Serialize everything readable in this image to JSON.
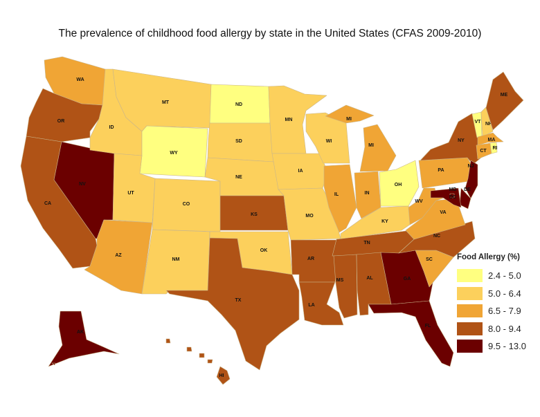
{
  "title": "The prevalence of childhood food allergy by state in the United States (CFAS 2009-2010)",
  "legend": {
    "title": "Food Allergy (%)",
    "classes": [
      {
        "label": "2.4 - 5.0",
        "color": "#ffff80"
      },
      {
        "label": "5.0 - 6.4",
        "color": "#fcd05c"
      },
      {
        "label": "6.5 - 7.9",
        "color": "#f0a535"
      },
      {
        "label": "8.0 - 9.4",
        "color": "#b05316"
      },
      {
        "label": "9.5 - 13.0",
        "color": "#6b0000"
      }
    ]
  },
  "states": [
    {
      "abbr": "WA",
      "class": 2
    },
    {
      "abbr": "OR",
      "class": 3
    },
    {
      "abbr": "CA",
      "class": 3
    },
    {
      "abbr": "NV",
      "class": 4
    },
    {
      "abbr": "ID",
      "class": 1
    },
    {
      "abbr": "MT",
      "class": 1
    },
    {
      "abbr": "WY",
      "class": 0
    },
    {
      "abbr": "UT",
      "class": 1
    },
    {
      "abbr": "AZ",
      "class": 2
    },
    {
      "abbr": "CO",
      "class": 1
    },
    {
      "abbr": "NM",
      "class": 1
    },
    {
      "abbr": "ND",
      "class": 0
    },
    {
      "abbr": "SD",
      "class": 1
    },
    {
      "abbr": "NE",
      "class": 1
    },
    {
      "abbr": "KS",
      "class": 3
    },
    {
      "abbr": "OK",
      "class": 1
    },
    {
      "abbr": "TX",
      "class": 3
    },
    {
      "abbr": "MN",
      "class": 1
    },
    {
      "abbr": "IA",
      "class": 1
    },
    {
      "abbr": "MO",
      "class": 1
    },
    {
      "abbr": "AR",
      "class": 3
    },
    {
      "abbr": "LA",
      "class": 3
    },
    {
      "abbr": "WI",
      "class": 1
    },
    {
      "abbr": "IL",
      "class": 2
    },
    {
      "abbr": "MI",
      "class": 2,
      "part": "upper"
    },
    {
      "abbr": "MI",
      "class": 2,
      "part": "lower"
    },
    {
      "abbr": "IN",
      "class": 2
    },
    {
      "abbr": "OH",
      "class": 0
    },
    {
      "abbr": "KY",
      "class": 1
    },
    {
      "abbr": "TN",
      "class": 3
    },
    {
      "abbr": "MS",
      "class": 3
    },
    {
      "abbr": "AL",
      "class": 3
    },
    {
      "abbr": "GA",
      "class": 4
    },
    {
      "abbr": "FL",
      "class": 4
    },
    {
      "abbr": "SC",
      "class": 2
    },
    {
      "abbr": "NC",
      "class": 3
    },
    {
      "abbr": "VA",
      "class": 2
    },
    {
      "abbr": "WV",
      "class": 2
    },
    {
      "abbr": "PA",
      "class": 2
    },
    {
      "abbr": "NY",
      "class": 3
    },
    {
      "abbr": "VT",
      "class": 0
    },
    {
      "abbr": "NH",
      "class": 1
    },
    {
      "abbr": "ME",
      "class": 3
    },
    {
      "abbr": "MA",
      "class": 2
    },
    {
      "abbr": "CT",
      "class": 2
    },
    {
      "abbr": "RI",
      "class": 0
    },
    {
      "abbr": "NJ",
      "class": 4
    },
    {
      "abbr": "DE",
      "class": 4
    },
    {
      "abbr": "MD",
      "class": 4
    },
    {
      "abbr": "DC",
      "class": 4
    },
    {
      "abbr": "AK",
      "class": 4
    },
    {
      "abbr": "HI",
      "class": 3
    }
  ]
}
